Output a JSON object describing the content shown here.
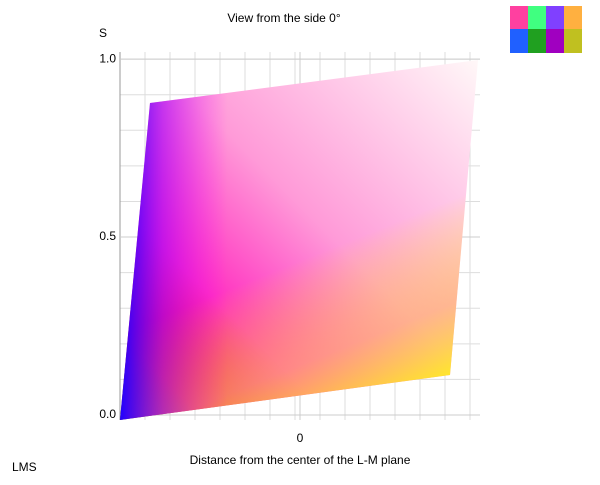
{
  "chart_data": {
    "type": "color-solid-view",
    "title": "View from the side 0°",
    "y_label": "S",
    "x_label": "Distance from the center of the L-M plane",
    "color_space": "LMS",
    "ylim": [
      0,
      1.02
    ],
    "yticks": [
      {
        "value": 0,
        "label": "0.0"
      },
      {
        "value": 0.5,
        "label": "0.5"
      },
      {
        "value": 1,
        "label": "1.0"
      }
    ],
    "xlim": [
      -1,
      1
    ],
    "xticks": [
      0
    ],
    "grid": true
  }
}
